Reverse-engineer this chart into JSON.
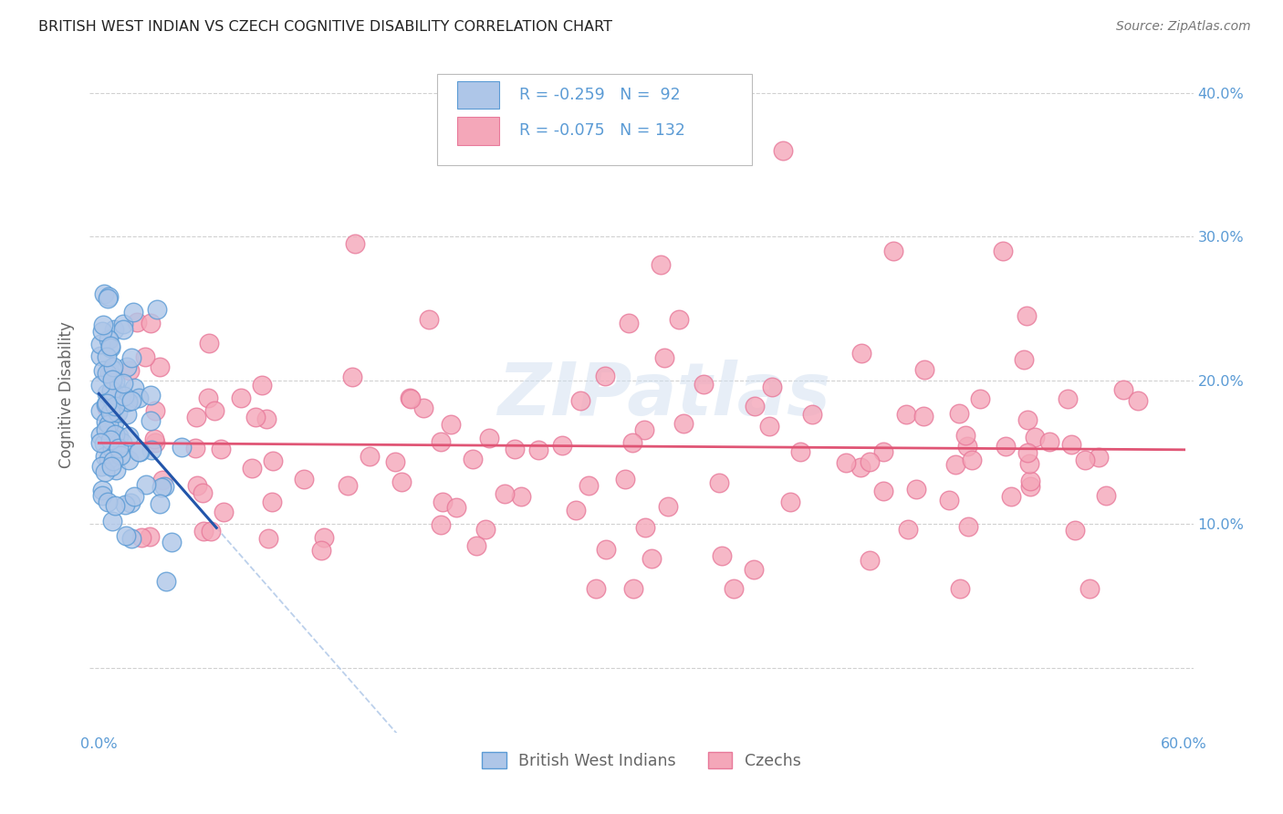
{
  "title": "BRITISH WEST INDIAN VS CZECH COGNITIVE DISABILITY CORRELATION CHART",
  "source": "Source: ZipAtlas.com",
  "ylabel": "Cognitive Disability",
  "xlim": [
    -0.005,
    0.605
  ],
  "ylim": [
    -0.045,
    0.425
  ],
  "yticks": [
    0.0,
    0.1,
    0.2,
    0.3,
    0.4
  ],
  "xticks": [
    0.0,
    0.1,
    0.2,
    0.3,
    0.4,
    0.5,
    0.6
  ],
  "series1_label": "British West Indians",
  "series2_label": "Czechs",
  "series1_color": "#aec6e8",
  "series2_color": "#f4a7b9",
  "series1_edge_color": "#5b9bd5",
  "series2_edge_color": "#e8799a",
  "series1_R": -0.259,
  "series1_N": 92,
  "series2_R": -0.075,
  "series2_N": 132,
  "axis_color": "#5b9bd5",
  "background_color": "#ffffff",
  "grid_color": "#cccccc",
  "title_fontsize": 11.5,
  "legend_text_color": "#5b9bd5",
  "watermark_color": "#d0dff0",
  "reg1_color": "#2255aa",
  "reg2_color": "#e05575",
  "reg1_dash_color": "#b0c8e8"
}
